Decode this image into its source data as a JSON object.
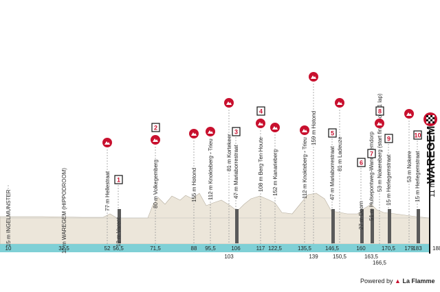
{
  "landmarks": [
    {
      "label": "15 m INGELMUNSTER",
      "km": "10"
    },
    {
      "label": "10 m WAREGEM (HIPPODROOM)",
      "km": "32,5"
    },
    {
      "label": "77 m Hellestraat",
      "km": "52",
      "climb": true
    },
    {
      "label": "12 m Varent",
      "km": "56,5",
      "sector": 1
    },
    {
      "label": "80 m Volkegemberg",
      "km": "71,5",
      "climb": true,
      "climb_no": 2
    },
    {
      "label": "155 m Hotond",
      "km": "88",
      "climb": true
    },
    {
      "label": "112 m Knokteberg - Trieu",
      "km": "95,5",
      "climb": true
    },
    {
      "label": "81 m Kortekeer",
      "km": "103",
      "climb": true
    },
    {
      "label": "47 m Mariaborrestraat",
      "km": "106",
      "sector": 3
    },
    {
      "label": "108 m Berg Ten Houte",
      "km": "117",
      "climb": true,
      "climb_no": 4
    },
    {
      "label": "152 m Kanarieberg",
      "km": "122,5",
      "climb": true
    },
    {
      "label": "112 m Knokteberg - Trieu",
      "km": "135,5",
      "climb": true
    },
    {
      "label": "159 m Hotond",
      "km": "139",
      "climb": true
    },
    {
      "label": "47 m Mariaborrestraat",
      "km": "146,5",
      "sector": 5
    },
    {
      "label": "81 m Ladeuze",
      "km": "150,5",
      "climb": true
    },
    {
      "label": "27 m Doorn",
      "km": "160",
      "sector": 6
    },
    {
      "label": "51 m Hulsepontweg-Wannegemdorp",
      "km": "163,5",
      "sector": 7
    },
    {
      "label": "53 m Nokereberg (start final loop - 1 lap)",
      "km": "166,5",
      "climb": true,
      "climb_no": 8
    },
    {
      "label": "15 m Herlegemstraat",
      "km": "170,5",
      "sector": 9
    },
    {
      "label": "53 m Nokere",
      "km": "179",
      "climb": true
    },
    {
      "label": "15 m Herlegemstraat",
      "km": "183",
      "sector": 10
    }
  ],
  "finish": {
    "alt": "11 m",
    "name": "WAREGEM",
    "km": "188"
  },
  "footer": {
    "powered": "Powered by",
    "brand": "La Flamme"
  },
  "colors": {
    "road": "#7fd0d6",
    "profile": "#ece6da",
    "climb": "#c8102e",
    "sector": "#5a5a5a"
  }
}
